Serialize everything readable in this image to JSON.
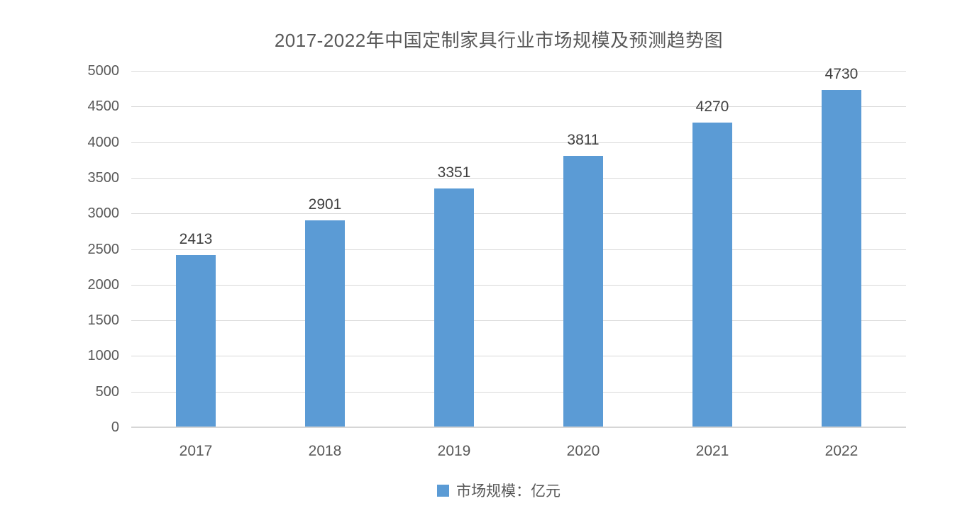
{
  "chart_data": {
    "type": "bar",
    "title": "2017-2022年中国定制家具行业市场规模及预测趋势图",
    "categories": [
      "2017",
      "2018",
      "2019",
      "2020",
      "2021",
      "2022"
    ],
    "series": [
      {
        "name": "市场规模：亿元",
        "values": [
          2413,
          2901,
          3351,
          3811,
          4270,
          4730
        ],
        "color": "#5B9BD5"
      }
    ],
    "data_labels_shown": true,
    "ylim": [
      0,
      5000
    ],
    "ytick_step": 500,
    "ytick_labels": [
      "0",
      "500",
      "1000",
      "1500",
      "2000",
      "2500",
      "3000",
      "3500",
      "4000",
      "4500",
      "5000"
    ],
    "xlabel": "",
    "ylabel": "",
    "grid": "horizontal",
    "legend_position": "bottom"
  },
  "colors": {
    "bar": "#5B9BD5",
    "gridline": "#D9D9D9",
    "axis_line": "#D6D6D6",
    "tick_text": "#595959",
    "data_label_text": "#404040",
    "title_text": "#595959",
    "background": "#FFFFFF"
  }
}
